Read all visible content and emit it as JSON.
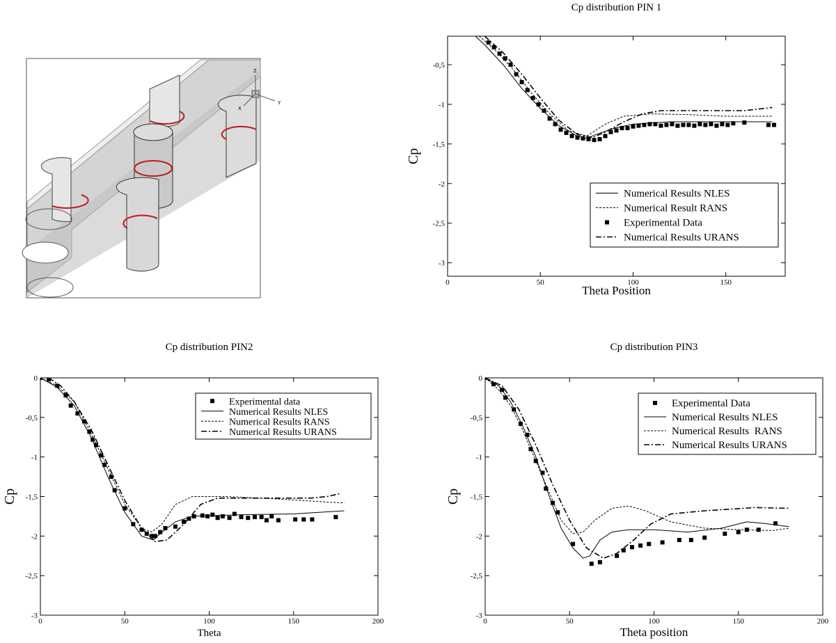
{
  "diagram": {
    "axis_labels": [
      "Z",
      "X",
      "Y"
    ]
  },
  "chart_data": [
    {
      "type": "line",
      "title": "Cp distribution PIN 1",
      "x_label": "Theta Position",
      "y_label": "Cp",
      "legend": "lower right",
      "xlim": [
        0,
        182
      ],
      "ylim": [
        -3.17,
        -0.14
      ],
      "xticks": [
        0,
        50,
        100,
        150
      ],
      "yticks": [
        {
          "value": -0.5,
          "label": "-0,5"
        },
        -1,
        {
          "value": -1.5,
          "label": "-1,5"
        },
        -2,
        {
          "value": -2.5,
          "label": "-2,5"
        },
        -3
      ],
      "series": [
        {
          "name": "Numerical Results NLES",
          "color": "#000000",
          "style": "solid",
          "x": [
            15,
            20,
            30,
            40,
            50,
            60,
            70,
            75,
            80,
            90,
            100,
            120,
            150,
            175
          ],
          "values": [
            -0.14,
            -0.25,
            -0.5,
            -0.8,
            -1.05,
            -1.27,
            -1.4,
            -1.43,
            -1.38,
            -1.3,
            -1.25,
            -1.22,
            -1.22,
            -1.22
          ]
        },
        {
          "name": "Numerical Result RANS",
          "color": "#000000",
          "style": "dashed",
          "x": [
            17,
            25,
            35,
            45,
            55,
            65,
            75,
            85,
            95,
            110,
            130,
            150,
            175
          ],
          "values": [
            -0.14,
            -0.3,
            -0.55,
            -0.85,
            -1.12,
            -1.33,
            -1.4,
            -1.25,
            -1.15,
            -1.12,
            -1.13,
            -1.15,
            -1.15
          ]
        },
        {
          "name": "Experimental Data",
          "color": "#000000",
          "style": "square",
          "x": [
            22,
            25,
            28,
            31,
            34,
            37,
            40,
            43,
            46,
            49,
            52,
            55,
            58,
            61,
            64,
            67,
            70,
            73,
            76,
            79,
            82,
            85,
            88,
            91,
            94,
            97,
            100,
            103,
            106,
            109,
            112,
            115,
            118,
            121,
            124,
            127,
            130,
            133,
            136,
            139,
            142,
            145,
            148,
            151,
            154,
            160,
            173,
            176
          ],
          "values": [
            -0.22,
            -0.28,
            -0.36,
            -0.42,
            -0.5,
            -0.62,
            -0.72,
            -0.82,
            -0.92,
            -1.0,
            -1.08,
            -1.18,
            -1.25,
            -1.32,
            -1.36,
            -1.4,
            -1.42,
            -1.43,
            -1.44,
            -1.45,
            -1.44,
            -1.4,
            -1.35,
            -1.33,
            -1.3,
            -1.3,
            -1.28,
            -1.27,
            -1.26,
            -1.25,
            -1.25,
            -1.27,
            -1.26,
            -1.25,
            -1.27,
            -1.26,
            -1.26,
            -1.27,
            -1.25,
            -1.26,
            -1.25,
            -1.27,
            -1.25,
            -1.26,
            -1.24,
            -1.23,
            -1.26,
            -1.26
          ]
        },
        {
          "name": "Numerical Results URANS",
          "color": "#000000",
          "style": "dash-dot",
          "x": [
            20,
            30,
            40,
            50,
            60,
            70,
            78,
            85,
            95,
            105,
            115,
            140,
            160,
            175
          ],
          "values": [
            -0.14,
            -0.35,
            -0.62,
            -0.92,
            -1.2,
            -1.38,
            -1.42,
            -1.35,
            -1.22,
            -1.12,
            -1.08,
            -1.08,
            -1.08,
            -1.04
          ]
        }
      ]
    },
    {
      "type": "line",
      "title": "Cp distribution PIN2",
      "x_label": "Theta",
      "y_label": "Cp",
      "legend": "upper right",
      "xlim": [
        0,
        200
      ],
      "ylim": [
        -3,
        0
      ],
      "xticks": [
        0,
        50,
        100,
        150,
        200
      ],
      "yticks": [
        0,
        {
          "value": -0.5,
          "label": "-0,5"
        },
        -1,
        {
          "value": -1.5,
          "label": "-1,5"
        },
        -2,
        {
          "value": -2.5,
          "label": "-2,5"
        },
        -3
      ],
      "series": [
        {
          "name": "Experimental data",
          "color": "#000000",
          "style": "square",
          "x": [
            0,
            5,
            10,
            15,
            18,
            22,
            26,
            29,
            31,
            33,
            36,
            38,
            42,
            44,
            50,
            55,
            60,
            63,
            66,
            68,
            71,
            74,
            80,
            85,
            88,
            91,
            96,
            99,
            102,
            105,
            108,
            112,
            115,
            119,
            123,
            127,
            131,
            134,
            137,
            141,
            151,
            156,
            161,
            175
          ],
          "values": [
            0,
            -0.02,
            -0.1,
            -0.22,
            -0.35,
            -0.45,
            -0.55,
            -0.68,
            -0.78,
            -0.85,
            -0.98,
            -1.1,
            -1.25,
            -1.42,
            -1.65,
            -1.85,
            -1.92,
            -1.97,
            -2.0,
            -2.0,
            -1.95,
            -1.9,
            -1.88,
            -1.82,
            -1.78,
            -1.75,
            -1.74,
            -1.75,
            -1.73,
            -1.77,
            -1.75,
            -1.77,
            -1.72,
            -1.76,
            -1.77,
            -1.76,
            -1.76,
            -1.8,
            -1.75,
            -1.8,
            -1.79,
            -1.79,
            -1.79,
            -1.76
          ]
        },
        {
          "name": "Numerical Results NLES",
          "color": "#000000",
          "style": "solid",
          "x": [
            0,
            10,
            20,
            30,
            40,
            50,
            60,
            67,
            72,
            80,
            90,
            120,
            150,
            180
          ],
          "values": [
            0,
            -0.12,
            -0.35,
            -0.75,
            -1.25,
            -1.7,
            -2.0,
            -2.05,
            -1.95,
            -1.82,
            -1.75,
            -1.73,
            -1.72,
            -1.68
          ]
        },
        {
          "name": "Numerical Results RANS",
          "color": "#000000",
          "style": "dashed",
          "x": [
            0,
            10,
            20,
            30,
            40,
            50,
            60,
            66,
            72,
            80,
            90,
            110,
            140,
            170,
            180
          ],
          "values": [
            0,
            -0.1,
            -0.3,
            -0.7,
            -1.15,
            -1.6,
            -1.9,
            -1.95,
            -1.85,
            -1.6,
            -1.5,
            -1.5,
            -1.53,
            -1.57,
            -1.58
          ]
        },
        {
          "name": "Numerical Results URANS",
          "color": "#000000",
          "style": "dash-dot",
          "x": [
            5,
            12,
            20,
            30,
            40,
            50,
            60,
            68,
            75,
            85,
            95,
            105,
            130,
            160,
            170,
            178
          ],
          "values": [
            0,
            -0.1,
            -0.3,
            -0.65,
            -1.1,
            -1.55,
            -1.9,
            -2.07,
            -2.05,
            -1.85,
            -1.6,
            -1.52,
            -1.52,
            -1.52,
            -1.5,
            -1.46
          ]
        }
      ]
    },
    {
      "type": "line",
      "title": "Cp distribution PIN3",
      "x_label": "Theta position",
      "y_label": "Cp",
      "legend": "upper right",
      "xlim": [
        0,
        200
      ],
      "ylim": [
        -3,
        0
      ],
      "xticks": [
        0,
        50,
        100,
        150,
        200
      ],
      "yticks": [
        0,
        {
          "value": -0.5,
          "label": "-0,5"
        },
        -1,
        {
          "value": -1.5,
          "label": "-1,5"
        },
        -2,
        {
          "value": -2.5,
          "label": "-2,5"
        },
        -3
      ],
      "series": [
        {
          "name": "Experimental Data",
          "color": "#000000",
          "style": "square",
          "x": [
            0,
            5,
            10,
            12,
            17,
            21,
            25,
            27,
            30,
            34,
            36,
            40,
            43,
            52,
            63,
            68,
            78,
            82,
            87,
            92,
            97,
            105,
            115,
            122,
            130,
            142,
            150,
            155,
            162,
            172
          ],
          "values": [
            0,
            -0.08,
            -0.15,
            -0.25,
            -0.4,
            -0.58,
            -0.72,
            -0.9,
            -1.05,
            -1.2,
            -1.4,
            -1.58,
            -1.7,
            -2.1,
            -2.35,
            -2.33,
            -2.25,
            -2.18,
            -2.14,
            -2.12,
            -2.1,
            -2.08,
            -2.05,
            -2.05,
            -2.02,
            -1.97,
            -1.95,
            -1.92,
            -1.92,
            -1.84
          ]
        },
        {
          "name": "Numerical Results NLES",
          "color": "#000000",
          "style": "solid",
          "x": [
            0,
            8,
            15,
            22,
            30,
            38,
            45,
            52,
            58,
            62,
            68,
            75,
            85,
            100,
            120,
            140,
            155,
            165,
            180
          ],
          "values": [
            0,
            -0.1,
            -0.3,
            -0.6,
            -1.0,
            -1.5,
            -1.9,
            -2.15,
            -2.28,
            -2.25,
            -2.05,
            -1.95,
            -1.92,
            -1.92,
            -1.95,
            -1.9,
            -1.82,
            -1.84,
            -1.88
          ]
        },
        {
          "name": "Numerical Results  RANS",
          "color": "#000000",
          "style": "dashed",
          "x": [
            0,
            8,
            15,
            22,
            30,
            38,
            45,
            52,
            58,
            65,
            75,
            85,
            95,
            110,
            130,
            150,
            170,
            180
          ],
          "values": [
            0,
            -0.15,
            -0.35,
            -0.65,
            -1.05,
            -1.45,
            -1.8,
            -1.97,
            -1.95,
            -1.8,
            -1.65,
            -1.62,
            -1.68,
            -1.82,
            -1.9,
            -1.92,
            -1.93,
            -1.9
          ]
        },
        {
          "name": "Numerical Results URANS",
          "color": "#000000",
          "style": "dash-dot",
          "x": [
            0,
            10,
            20,
            30,
            40,
            50,
            60,
            70,
            78,
            88,
            98,
            110,
            130,
            160,
            180
          ],
          "values": [
            0,
            -0.1,
            -0.4,
            -0.85,
            -1.35,
            -1.8,
            -2.15,
            -2.28,
            -2.22,
            -2.05,
            -1.85,
            -1.72,
            -1.68,
            -1.64,
            -1.65
          ]
        }
      ]
    }
  ]
}
